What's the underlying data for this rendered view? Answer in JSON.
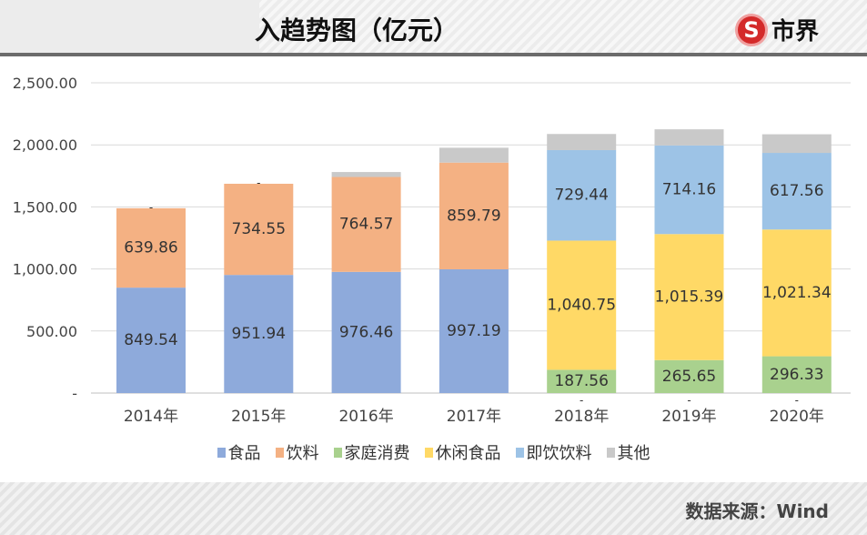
{
  "header": {
    "title": "入趋势图（亿元）",
    "logo_text": "市界",
    "logo_mark": "S"
  },
  "footer": {
    "source": "数据来源：Wind"
  },
  "colors": {
    "食品": "#8eaadb",
    "饮料": "#f4b183",
    "家庭消费": "#a9d18e",
    "休闲食品": "#ffd966",
    "即饮饮料": "#9dc3e6",
    "其他": "#c9c9c9"
  },
  "chart_data": {
    "type": "bar",
    "stacked": true,
    "categories": [
      "2014年",
      "2015年",
      "2016年",
      "2017年",
      "2018年",
      "2019年",
      "2020年"
    ],
    "ylim": [
      0,
      2500
    ],
    "yticks": [
      0,
      500,
      1000,
      1500,
      2000,
      2500
    ],
    "ytick_labels": [
      "-",
      "500.00",
      "1,000.00",
      "1,500.00",
      "2,000.00",
      "2,500.00"
    ],
    "grid": true,
    "legend_position": "bottom",
    "series": [
      {
        "name": "食品",
        "values": [
          849.54,
          951.94,
          976.46,
          997.19,
          0,
          0,
          0
        ],
        "labels": [
          "849.54",
          "951.94",
          "976.46",
          "997.19",
          "-",
          "-",
          "-"
        ]
      },
      {
        "name": "饮料",
        "values": [
          639.86,
          734.55,
          764.57,
          859.79,
          0,
          0,
          0
        ],
        "labels": [
          "639.86",
          "734.55",
          "764.57",
          "859.79",
          "",
          "",
          ""
        ]
      },
      {
        "name": "家庭消费",
        "values": [
          0,
          0,
          0,
          0,
          187.56,
          265.65,
          296.33
        ],
        "labels": [
          "",
          "",
          "",
          "",
          "187.56",
          "265.65",
          "296.33"
        ]
      },
      {
        "name": "休闲食品",
        "values": [
          0,
          0,
          0,
          0,
          1040.75,
          1015.39,
          1021.34
        ],
        "labels": [
          "",
          "",
          "",
          "",
          "1,040.75",
          "1,015.39",
          "1,021.34"
        ]
      },
      {
        "name": "即饮饮料",
        "values": [
          0,
          0,
          0,
          0,
          729.44,
          714.16,
          617.56
        ],
        "labels": [
          "-",
          "-",
          "-",
          "-",
          "729.44",
          "714.16",
          "617.56"
        ]
      },
      {
        "name": "其他",
        "values": [
          0,
          0,
          40,
          120,
          130,
          130,
          150
        ],
        "labels": [
          "",
          "",
          "",
          "",
          "",
          "",
          ""
        ]
      }
    ]
  }
}
